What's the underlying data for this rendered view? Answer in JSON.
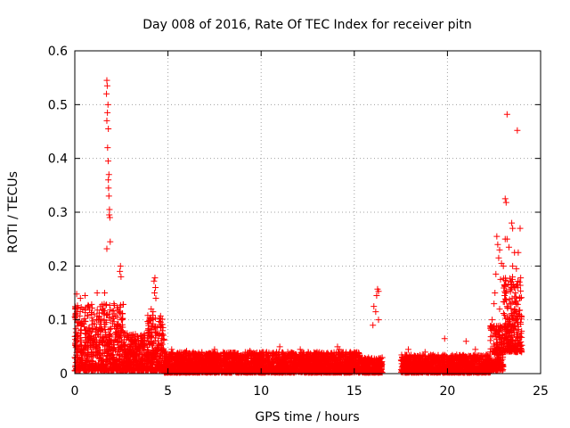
{
  "chart_data": {
    "type": "scatter",
    "title": "Day 008 of 2016, Rate Of TEC Index for receiver pitn",
    "xlabel": "GPS time / hours",
    "ylabel": "ROTI / TECUs",
    "xlim": [
      0,
      25
    ],
    "ylim": [
      0,
      0.6
    ],
    "x_ticks": [
      "0",
      "5",
      "10",
      "15",
      "20",
      "25"
    ],
    "y_ticks": [
      "0",
      "0.1",
      "0.2",
      "0.3",
      "0.4",
      "0.5",
      "0.6"
    ],
    "grid": true,
    "marker": "+",
    "color": "#ff0000",
    "series": [
      {
        "name": "ROTI",
        "points": [
          [
            1.72,
            0.545
          ],
          [
            1.74,
            0.535
          ],
          [
            1.7,
            0.52
          ],
          [
            1.78,
            0.5
          ],
          [
            1.75,
            0.485
          ],
          [
            1.72,
            0.47
          ],
          [
            1.8,
            0.455
          ],
          [
            1.76,
            0.42
          ],
          [
            1.79,
            0.395
          ],
          [
            1.83,
            0.37
          ],
          [
            1.8,
            0.36
          ],
          [
            1.81,
            0.345
          ],
          [
            1.83,
            0.33
          ],
          [
            1.86,
            0.305
          ],
          [
            1.85,
            0.295
          ],
          [
            1.88,
            0.29
          ],
          [
            1.9,
            0.245
          ],
          [
            1.72,
            0.232
          ],
          [
            2.45,
            0.2
          ],
          [
            2.42,
            0.19
          ],
          [
            2.48,
            0.18
          ],
          [
            4.3,
            0.178
          ],
          [
            4.25,
            0.172
          ],
          [
            4.33,
            0.16
          ],
          [
            4.28,
            0.15
          ],
          [
            4.35,
            0.14
          ],
          [
            4.1,
            0.12
          ],
          [
            4.2,
            0.115
          ],
          [
            0.1,
            0.148
          ],
          [
            0.3,
            0.14
          ],
          [
            0.55,
            0.145
          ],
          [
            1.2,
            0.15
          ],
          [
            1.6,
            0.15
          ],
          [
            2.1,
            0.13
          ],
          [
            0.05,
            0.12
          ],
          [
            16.25,
            0.157
          ],
          [
            16.3,
            0.153
          ],
          [
            16.2,
            0.145
          ],
          [
            16.05,
            0.125
          ],
          [
            16.15,
            0.115
          ],
          [
            16.0,
            0.09
          ],
          [
            16.3,
            0.1
          ],
          [
            19.85,
            0.065
          ],
          [
            21.0,
            0.06
          ],
          [
            22.3,
            0.088
          ],
          [
            23.2,
            0.482
          ],
          [
            23.75,
            0.452
          ],
          [
            23.1,
            0.325
          ],
          [
            23.15,
            0.318
          ],
          [
            23.45,
            0.28
          ],
          [
            23.5,
            0.27
          ],
          [
            23.9,
            0.27
          ],
          [
            22.65,
            0.255
          ],
          [
            22.7,
            0.24
          ],
          [
            23.1,
            0.25
          ],
          [
            23.2,
            0.25
          ],
          [
            22.8,
            0.23
          ],
          [
            23.3,
            0.235
          ],
          [
            23.6,
            0.225
          ],
          [
            23.8,
            0.225
          ],
          [
            22.75,
            0.215
          ],
          [
            22.9,
            0.205
          ],
          [
            23.0,
            0.2
          ],
          [
            23.5,
            0.2
          ],
          [
            23.7,
            0.195
          ],
          [
            22.6,
            0.185
          ],
          [
            22.85,
            0.175
          ],
          [
            23.05,
            0.165
          ],
          [
            23.4,
            0.17
          ],
          [
            23.75,
            0.165
          ],
          [
            22.55,
            0.15
          ],
          [
            23.65,
            0.15
          ],
          [
            23.9,
            0.14
          ],
          [
            22.5,
            0.13
          ],
          [
            22.8,
            0.12
          ],
          [
            23.2,
            0.125
          ],
          [
            23.6,
            0.12
          ],
          [
            23.85,
            0.11
          ],
          [
            22.4,
            0.1
          ],
          [
            23.3,
            0.1
          ],
          [
            23.5,
            0.09
          ],
          [
            23.7,
            0.08
          ],
          [
            23.95,
            0.075
          ],
          [
            23.4,
            0.06
          ],
          [
            23.8,
            0.05
          ],
          [
            14.1,
            0.05
          ],
          [
            14.2,
            0.045
          ],
          [
            12.1,
            0.045
          ],
          [
            11.0,
            0.05
          ],
          [
            9.4,
            0.042
          ],
          [
            7.5,
            0.045
          ],
          [
            6.0,
            0.042
          ],
          [
            5.2,
            0.045
          ],
          [
            13.0,
            0.04
          ],
          [
            15.0,
            0.04
          ],
          [
            17.9,
            0.045
          ],
          [
            18.8,
            0.04
          ],
          [
            21.5,
            0.045
          ],
          [
            10.3,
            0.04
          ]
        ]
      }
    ],
    "dense_bands": [
      {
        "x": [
          0.0,
          2.6
        ],
        "y": [
          0.005,
          0.13
        ]
      },
      {
        "x": [
          2.6,
          3.9
        ],
        "y": [
          0.005,
          0.075
        ]
      },
      {
        "x": [
          3.9,
          4.8
        ],
        "y": [
          0.005,
          0.11
        ]
      },
      {
        "x": [
          4.8,
          15.3
        ],
        "y": [
          0.002,
          0.04
        ]
      },
      {
        "x": [
          15.3,
          16.5
        ],
        "y": [
          0.002,
          0.03
        ]
      },
      {
        "x": [
          17.5,
          22.3
        ],
        "y": [
          0.002,
          0.035
        ]
      },
      {
        "x": [
          22.3,
          23.0
        ],
        "y": [
          0.005,
          0.09
        ]
      },
      {
        "x": [
          23.0,
          24.0
        ],
        "y": [
          0.04,
          0.18
        ]
      }
    ]
  }
}
